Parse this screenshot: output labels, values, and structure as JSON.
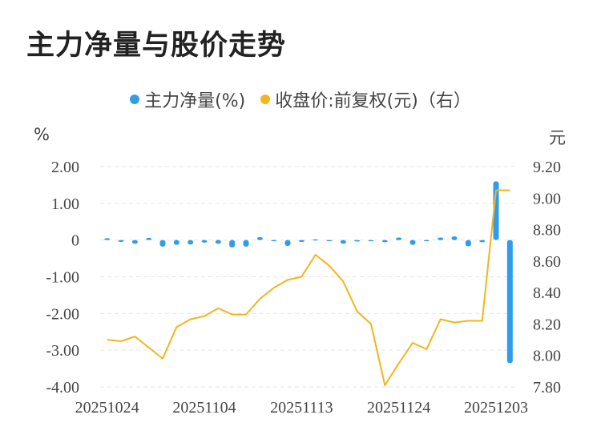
{
  "title": "主力净量与股价走势",
  "legend": [
    {
      "label": "主力净量(%)",
      "color": "#2f9de8"
    },
    {
      "label": "收盘价:前复权(元)（右）",
      "color": "#f2b51c"
    }
  ],
  "unit_left": "%",
  "unit_right": "元",
  "chart_data": {
    "type": "bar+line",
    "x_tick_labels": [
      "20251024",
      "20251104",
      "20251113",
      "20251124",
      "20251203"
    ],
    "x_tick_indices": [
      0,
      7,
      14,
      21,
      28
    ],
    "left_axis": {
      "ylim": [
        -4,
        2
      ],
      "ticks": [
        -4,
        -3,
        -2,
        -1,
        0,
        1,
        2
      ],
      "tick_labels": [
        "-4.00",
        "-3.00",
        "-2.00",
        "-1.00",
        "0",
        "1.00",
        "2.00"
      ]
    },
    "right_axis": {
      "ylim": [
        7.8,
        9.2
      ],
      "ticks": [
        7.8,
        8.0,
        8.2,
        8.4,
        8.6,
        8.8,
        9.0,
        9.2
      ],
      "tick_labels": [
        "7.80",
        "8.00",
        "8.20",
        "8.40",
        "8.60",
        "8.80",
        "9.00",
        "9.20"
      ]
    },
    "grid": true,
    "series": [
      {
        "name": "主力净量(%)",
        "kind": "bar",
        "axis": "left",
        "color": "#2f9de8",
        "values": [
          0.05,
          -0.05,
          -0.1,
          0.06,
          -0.18,
          -0.13,
          -0.12,
          -0.07,
          -0.1,
          -0.2,
          -0.18,
          0.08,
          -0.02,
          -0.16,
          -0.05,
          0.02,
          -0.02,
          -0.1,
          -0.04,
          -0.02,
          -0.06,
          0.07,
          -0.13,
          -0.02,
          0.07,
          0.1,
          -0.17,
          -0.06,
          1.6,
          -3.35
        ]
      },
      {
        "name": "收盘价:前复权(元)（右）",
        "kind": "line",
        "axis": "right",
        "color": "#f2b51c",
        "values": [
          8.1,
          8.09,
          8.12,
          8.05,
          7.98,
          8.18,
          8.23,
          8.25,
          8.3,
          8.26,
          8.26,
          8.36,
          8.43,
          8.48,
          8.5,
          8.64,
          8.57,
          8.47,
          8.28,
          8.2,
          7.81,
          7.95,
          8.08,
          8.04,
          8.23,
          8.21,
          8.22,
          8.22,
          9.05,
          9.05
        ]
      }
    ]
  }
}
